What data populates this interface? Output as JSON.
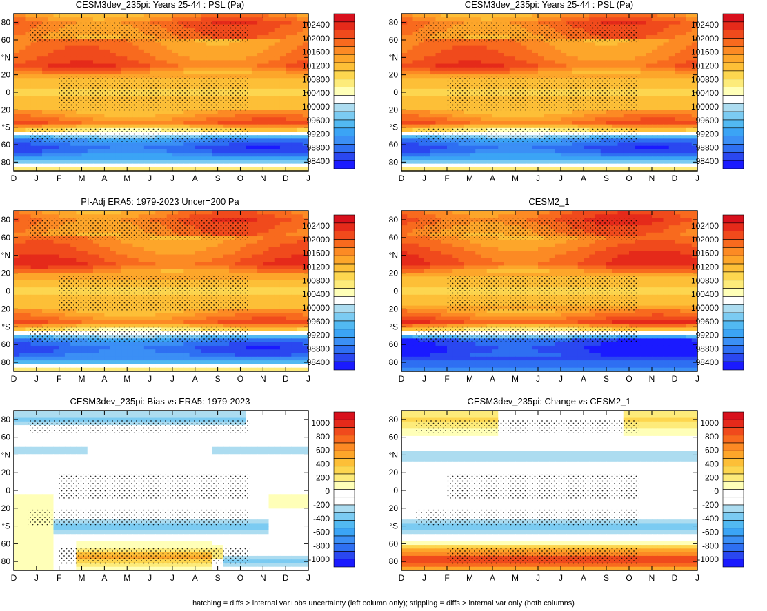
{
  "palettes": {
    "psl": [
      "#1a1aff",
      "#2a47f0",
      "#2e6ff2",
      "#3b8ff5",
      "#3ba4f5",
      "#52b9f2",
      "#7bcbf2",
      "#acdcf0",
      "#ffffff",
      "#ffffb8",
      "#fdeb7a",
      "#fdd64f",
      "#fdbf37",
      "#fda62a",
      "#fc8a24",
      "#f86a1e",
      "#f04a1c",
      "#e52a1a",
      "#d8101c"
    ],
    "diff": [
      "#1a1aff",
      "#2a47f0",
      "#2e6ff2",
      "#3b8ff5",
      "#3ba4f5",
      "#52b9f2",
      "#7bcbf2",
      "#acdcf0",
      "#ffffff",
      "#ffffff",
      "#ffffb8",
      "#fdeb7a",
      "#fdd64f",
      "#fdbf37",
      "#fda62a",
      "#fc8a24",
      "#f86a1e",
      "#f04a1c",
      "#e52a1a",
      "#d8101c"
    ]
  },
  "months": [
    "D",
    "J",
    "F",
    "M",
    "A",
    "M",
    "J",
    "J",
    "A",
    "S",
    "O",
    "N",
    "D",
    "J"
  ],
  "lat_ticks": [
    "80",
    "60",
    "40",
    "20",
    "0",
    "-20",
    "-40",
    "-60",
    "-80"
  ],
  "lat_labels": [
    "80",
    "60",
    "°N",
    "20",
    "0",
    "20",
    "°S",
    "60",
    "80"
  ],
  "colorbars": {
    "psl": [
      "102400",
      "102000",
      "101600",
      "101200",
      "100800",
      "100400",
      "100000",
      "99600",
      "99200",
      "98800",
      "98400"
    ],
    "diff": [
      "1000",
      "800",
      "600",
      "400",
      "200",
      "0",
      "-200",
      "-400",
      "-600",
      "-800",
      "-1000"
    ]
  },
  "chart_data": [
    {
      "id": "p1",
      "type": "heatmap",
      "title": "CESM3dev_235pi: Years 25-44 : PSL (Pa)",
      "field": "psl",
      "variant": 0,
      "scale": "psl",
      "xlabel": "month",
      "ylabel": "latitude",
      "clim": [
        98200,
        102600
      ],
      "zonal_profile": [
        [
          90,
          101300
        ],
        [
          80,
          101800
        ],
        [
          60,
          101500
        ],
        [
          40,
          101700
        ],
        [
          30,
          101900
        ],
        [
          20,
          101300
        ],
        [
          0,
          100900
        ],
        [
          -20,
          101200
        ],
        [
          -35,
          101800
        ],
        [
          -50,
          99800
        ],
        [
          -55,
          99000
        ],
        [
          -65,
          98600
        ],
        [
          -75,
          99200
        ],
        [
          -90,
          100900
        ]
      ]
    },
    {
      "id": "p2",
      "type": "heatmap",
      "title": "CESM3dev_235pi: Years 25-44 : PSL (Pa)",
      "field": "psl",
      "variant": 0,
      "scale": "psl",
      "xlabel": "month",
      "ylabel": "latitude",
      "clim": [
        98200,
        102600
      ],
      "zonal_profile": [
        [
          90,
          101300
        ],
        [
          80,
          101800
        ],
        [
          60,
          101500
        ],
        [
          40,
          101700
        ],
        [
          30,
          101900
        ],
        [
          20,
          101300
        ],
        [
          0,
          100900
        ],
        [
          -20,
          101200
        ],
        [
          -35,
          101800
        ],
        [
          -50,
          99800
        ],
        [
          -55,
          99000
        ],
        [
          -65,
          98600
        ],
        [
          -75,
          99200
        ],
        [
          -90,
          100900
        ]
      ]
    },
    {
      "id": "p3",
      "type": "heatmap",
      "title": "PI-Adj ERA5: 1979-2023 Uncer=200 Pa",
      "field": "psl",
      "variant": 1,
      "scale": "psl",
      "xlabel": "month",
      "ylabel": "latitude",
      "clim": [
        98200,
        102600
      ],
      "zonal_profile": [
        [
          90,
          101500
        ],
        [
          80,
          101800
        ],
        [
          60,
          101500
        ],
        [
          40,
          101800
        ],
        [
          30,
          102000
        ],
        [
          20,
          101400
        ],
        [
          0,
          100900
        ],
        [
          -20,
          101200
        ],
        [
          -35,
          101800
        ],
        [
          -50,
          99800
        ],
        [
          -55,
          99000
        ],
        [
          -65,
          98600
        ],
        [
          -75,
          99000
        ],
        [
          -90,
          100800
        ]
      ]
    },
    {
      "id": "p4",
      "type": "heatmap",
      "title": "CESM2_1",
      "field": "psl",
      "variant": 2,
      "scale": "psl",
      "xlabel": "month",
      "ylabel": "latitude",
      "clim": [
        98200,
        102600
      ],
      "zonal_profile": [
        [
          90,
          101700
        ],
        [
          80,
          101900
        ],
        [
          60,
          101500
        ],
        [
          40,
          101900
        ],
        [
          30,
          102000
        ],
        [
          20,
          101300
        ],
        [
          0,
          100900
        ],
        [
          -20,
          101300
        ],
        [
          -35,
          102000
        ],
        [
          -50,
          99800
        ],
        [
          -55,
          98600
        ],
        [
          -65,
          98400
        ],
        [
          -75,
          98600
        ],
        [
          -90,
          99000
        ]
      ]
    },
    {
      "id": "p5",
      "type": "heatmap",
      "title": "CESM3dev_235pi: Bias vs ERA5: 1979-2023",
      "field": "bias",
      "variant": 0,
      "scale": "diff",
      "xlabel": "month",
      "ylabel": "latitude",
      "clim": [
        -1100,
        1100
      ],
      "features": [
        {
          "lat": 80,
          "lat_width": 12,
          "amp": -350,
          "months": [
            1,
            2,
            3,
            4,
            5,
            6,
            7,
            8,
            9
          ]
        },
        {
          "lat": 45,
          "lat_width": 8,
          "amp": -300,
          "months": [
            0,
            1,
            2,
            10,
            11,
            12
          ]
        },
        {
          "lat": -40,
          "lat_width": 10,
          "amp": -380,
          "months": [
            3,
            4,
            5,
            6,
            7,
            8,
            9,
            10
          ]
        },
        {
          "lat": -75,
          "lat_width": 8,
          "amp": 450,
          "months": [
            4,
            5,
            6,
            7,
            8
          ]
        },
        {
          "lat": -80,
          "lat_width": 10,
          "amp": -350,
          "months": [
            10,
            11,
            12
          ]
        }
      ]
    },
    {
      "id": "p6",
      "type": "heatmap",
      "title": "CESM3dev_235pi: Change vs CESM2_1",
      "field": "change",
      "variant": 0,
      "scale": "diff",
      "xlabel": "month",
      "ylabel": "latitude",
      "clim": [
        -1100,
        1100
      ],
      "features": [
        {
          "lat": 80,
          "lat_width": 10,
          "amp": 250,
          "months": [
            0,
            1,
            2,
            3,
            11,
            12,
            13
          ]
        },
        {
          "lat": 40,
          "lat_width": 12,
          "amp": -300,
          "months": [
            0,
            1,
            2,
            3,
            4,
            5,
            6,
            7,
            8,
            9,
            10,
            11,
            12,
            13
          ]
        },
        {
          "lat": -40,
          "lat_width": 12,
          "amp": -380,
          "months": [
            0,
            1,
            2,
            3,
            4,
            5,
            6,
            7,
            8,
            9,
            10,
            11,
            12,
            13
          ]
        },
        {
          "lat": -78,
          "lat_width": 14,
          "amp": 800,
          "months": [
            0,
            1,
            2,
            3,
            4,
            5,
            6,
            7,
            8,
            9,
            10,
            11,
            12,
            13
          ]
        }
      ]
    }
  ],
  "caption": "hatching = diffs > internal var+obs uncertainty (left column only); stippling = diffs > internal var only (both columns)"
}
